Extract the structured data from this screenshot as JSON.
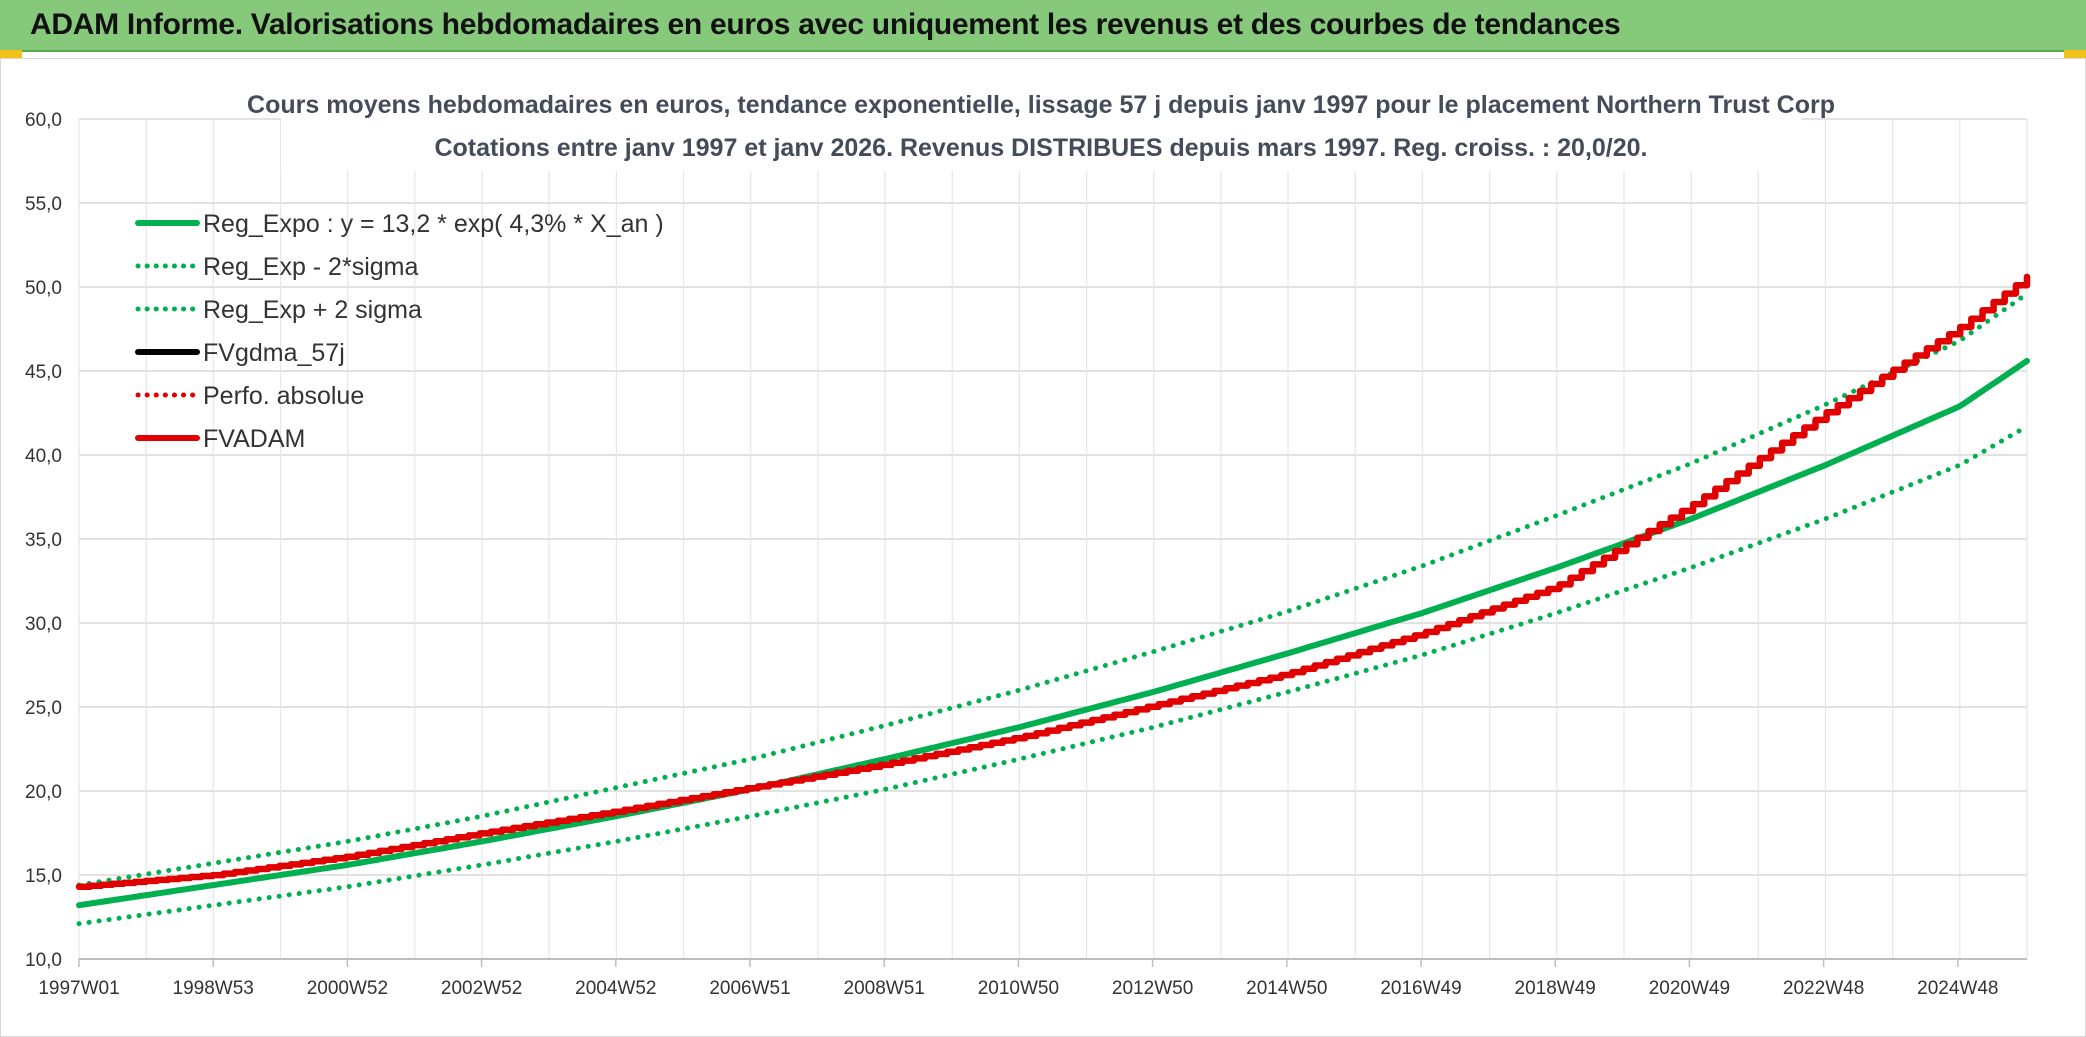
{
  "banner": {
    "title": "ADAM Informe. Valorisations hebdomadaires en euros avec uniquement les revenus et des courbes de tendances"
  },
  "chart_data": {
    "type": "line",
    "title": "Cours moyens hebdomadaires en euros, tendance exponentielle, lissage 57 j depuis janv 1997 pour le placement Northern Trust Corp",
    "subtitle": "Cotations entre janv 1997 et janv 2026. Revenus DISTRIBUES depuis mars 1997. Reg. croiss. : 20,0/20.",
    "xlabel": "",
    "ylabel": "",
    "x_range": [
      1997.0,
      2026.0
    ],
    "ylim": [
      10,
      60
    ],
    "y_ticks": [
      "10,0",
      "15,0",
      "20,0",
      "25,0",
      "30,0",
      "35,0",
      "40,0",
      "45,0",
      "50,0",
      "55,0",
      "60,0"
    ],
    "x_ticks": [
      "1997W01",
      "1998W53",
      "2000W52",
      "2002W52",
      "2004W52",
      "2006W51",
      "2008W51",
      "2010W50",
      "2012W50",
      "2014W50",
      "2016W49",
      "2018W49",
      "2020W49",
      "2022W48",
      "2024W48"
    ],
    "grid": true,
    "legend_position": "top-left",
    "series": [
      {
        "name": "Reg_Expo : y = 13,2 * exp( 4,3% *  X_an )",
        "color": "#00b050",
        "style": "solid",
        "x": [
          1997,
          1999,
          2001,
          2003,
          2005,
          2007,
          2009,
          2011,
          2013,
          2015,
          2017,
          2019,
          2021,
          2023,
          2025,
          2026
        ],
        "values": [
          13.2,
          14.4,
          15.6,
          17.0,
          18.5,
          20.1,
          21.9,
          23.8,
          25.9,
          28.2,
          30.6,
          33.3,
          36.2,
          39.4,
          42.9,
          45.6
        ]
      },
      {
        "name": "Reg_Exp - 2*sigma",
        "color": "#00b050",
        "style": "dotted",
        "x": [
          1997,
          1999,
          2001,
          2003,
          2005,
          2007,
          2009,
          2011,
          2013,
          2015,
          2017,
          2019,
          2021,
          2023,
          2025,
          2026
        ],
        "values": [
          12.1,
          13.2,
          14.3,
          15.6,
          17.0,
          18.5,
          20.1,
          21.9,
          23.8,
          25.9,
          28.1,
          30.6,
          33.3,
          36.2,
          39.4,
          41.7
        ]
      },
      {
        "name": "Reg_Exp + 2 sigma",
        "color": "#00b050",
        "style": "dotted",
        "x": [
          1997,
          1999,
          2001,
          2003,
          2005,
          2007,
          2009,
          2011,
          2013,
          2015,
          2017,
          2019,
          2021,
          2023,
          2025,
          2026
        ],
        "values": [
          14.4,
          15.7,
          17.0,
          18.5,
          20.2,
          21.9,
          23.9,
          26.0,
          28.3,
          30.7,
          33.4,
          36.4,
          39.5,
          43.0,
          46.8,
          49.6
        ]
      },
      {
        "name": "FVgdma_57j",
        "color": "#000000",
        "style": "solid",
        "x": [],
        "values": []
      },
      {
        "name": "Perfo. absolue",
        "color": "#e00000",
        "style": "dotted",
        "x": [],
        "values": []
      },
      {
        "name": "FVADAM",
        "color": "#e00000",
        "style": "solid",
        "x": [
          1997,
          1999,
          2001,
          2003,
          2005,
          2007,
          2009,
          2011,
          2013,
          2015,
          2017,
          2019,
          2021,
          2023,
          2025,
          2026
        ],
        "values": [
          14.3,
          15.0,
          16.1,
          17.5,
          18.8,
          20.2,
          21.6,
          23.2,
          25.1,
          27.0,
          29.4,
          32.2,
          37.0,
          42.5,
          47.6,
          50.6
        ]
      }
    ]
  }
}
